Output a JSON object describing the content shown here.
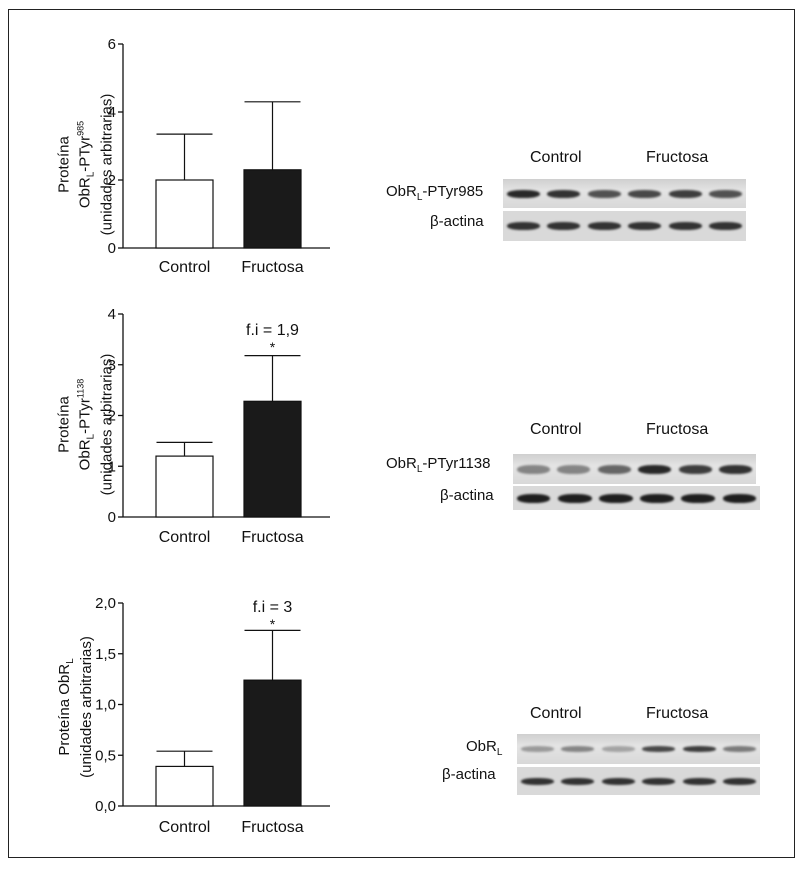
{
  "chart_data": [
    {
      "type": "bar",
      "categories": [
        "Control",
        "Fructosa"
      ],
      "values": [
        2.0,
        2.3
      ],
      "errors": [
        1.35,
        2.0
      ],
      "ylabel_line1": "Proteína",
      "ylabel_line2_main": "ObR",
      "ylabel_line2_sub": "L",
      "ylabel_line2_rest": "-PTyr",
      "ylabel_line2_sup": "985",
      "ylabel_line3": "(unidades arbitrarias)",
      "ylim": [
        0,
        6
      ],
      "yticks": [
        "0",
        "2",
        "4",
        "6"
      ],
      "yticks_values": [
        0,
        2,
        4,
        6
      ],
      "annotation": "",
      "significance": "",
      "bar_colors": [
        "#ffffff",
        "#1a1a1a"
      ]
    },
    {
      "type": "bar",
      "categories": [
        "Control",
        "Fructosa"
      ],
      "values": [
        1.2,
        2.28
      ],
      "errors": [
        0.27,
        0.9
      ],
      "ylabel_line1": "Proteína",
      "ylabel_line2_main": "ObR",
      "ylabel_line2_sub": "L",
      "ylabel_line2_rest": "-PTyr",
      "ylabel_line2_sup": "1138",
      "ylabel_line3": "(unidades arbitrarias)",
      "ylim": [
        0,
        4
      ],
      "yticks": [
        "0",
        "1",
        "2",
        "3",
        "4"
      ],
      "yticks_values": [
        0,
        1,
        2,
        3,
        4
      ],
      "annotation": "f.i = 1,9",
      "significance": "*",
      "bar_colors": [
        "#ffffff",
        "#1a1a1a"
      ]
    },
    {
      "type": "bar",
      "categories": [
        "Control",
        "Fructosa"
      ],
      "values": [
        0.39,
        1.24
      ],
      "errors": [
        0.15,
        0.49
      ],
      "ylabel_line1": "",
      "ylabel_line2_main": "Proteína ObR",
      "ylabel_line2_sub": "L",
      "ylabel_line2_rest": "",
      "ylabel_line2_sup": "",
      "ylabel_line3": "(unidades arbitrarias)",
      "ylim": [
        0,
        2.0
      ],
      "yticks": [
        "0,0",
        "0,5",
        "1,0",
        "1,5",
        "2,0"
      ],
      "yticks_values": [
        0,
        0.5,
        1.0,
        1.5,
        2.0
      ],
      "annotation": "f.i = 3",
      "significance": "*",
      "bar_colors": [
        "#ffffff",
        "#1a1a1a"
      ]
    }
  ],
  "blots": [
    {
      "header_control": "Control",
      "header_fructosa": "Fructosa",
      "row1_main": "ObR",
      "row1_sub": "L",
      "row1_rest": "-PTyr985",
      "row2": "β-actina",
      "row1_intensity": [
        0.9,
        0.85,
        0.7,
        0.75,
        0.8,
        0.7
      ],
      "row2_intensity": [
        0.85,
        0.85,
        0.85,
        0.85,
        0.85,
        0.85
      ]
    },
    {
      "header_control": "Control",
      "header_fructosa": "Fructosa",
      "row1_main": "ObR",
      "row1_sub": "L",
      "row1_rest": "-PTyr1138",
      "row2": "β-actina",
      "row1_intensity": [
        0.45,
        0.45,
        0.6,
        0.9,
        0.8,
        0.85
      ],
      "row2_intensity": [
        0.95,
        0.95,
        0.95,
        0.95,
        0.95,
        0.95
      ]
    },
    {
      "header_control": "Control",
      "header_fructosa": "Fructosa",
      "row1_main": "ObR",
      "row1_sub": "L",
      "row1_rest": "",
      "row2": "β-actina",
      "row1_intensity": [
        0.35,
        0.45,
        0.3,
        0.75,
        0.8,
        0.5
      ],
      "row2_intensity": [
        0.85,
        0.85,
        0.85,
        0.85,
        0.85,
        0.85
      ]
    }
  ]
}
